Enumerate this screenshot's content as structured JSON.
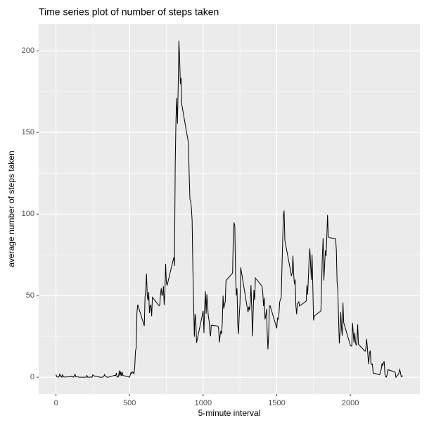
{
  "chart_data": {
    "type": "line",
    "title": "Time series plot of number of steps taken",
    "x_label": "5-minute interval",
    "y_label": "average number of steps taken",
    "x": [
      0,
      5,
      10,
      15,
      20,
      25,
      30,
      35,
      40,
      45,
      50,
      55,
      100,
      105,
      110,
      115,
      120,
      125,
      130,
      135,
      140,
      145,
      150,
      155,
      200,
      205,
      210,
      215,
      220,
      225,
      230,
      235,
      240,
      245,
      250,
      255,
      300,
      305,
      310,
      315,
      320,
      325,
      330,
      335,
      340,
      345,
      350,
      355,
      400,
      405,
      410,
      415,
      420,
      425,
      430,
      435,
      440,
      445,
      450,
      455,
      500,
      505,
      510,
      515,
      520,
      525,
      530,
      535,
      540,
      545,
      550,
      555,
      600,
      605,
      610,
      615,
      620,
      625,
      630,
      635,
      640,
      645,
      650,
      655,
      700,
      705,
      710,
      715,
      720,
      725,
      730,
      735,
      740,
      745,
      750,
      755,
      800,
      805,
      810,
      815,
      820,
      825,
      830,
      835,
      840,
      845,
      850,
      855,
      900,
      905,
      910,
      915,
      920,
      925,
      930,
      935,
      940,
      945,
      950,
      955,
      1000,
      1005,
      1010,
      1015,
      1020,
      1025,
      1030,
      1035,
      1040,
      1045,
      1050,
      1055,
      1100,
      1105,
      1110,
      1115,
      1120,
      1125,
      1130,
      1135,
      1140,
      1145,
      1150,
      1155,
      1200,
      1205,
      1210,
      1215,
      1220,
      1225,
      1230,
      1235,
      1240,
      1245,
      1250,
      1255,
      1300,
      1305,
      1310,
      1315,
      1320,
      1325,
      1330,
      1335,
      1340,
      1345,
      1350,
      1355,
      1400,
      1405,
      1410,
      1415,
      1420,
      1425,
      1430,
      1435,
      1440,
      1445,
      1450,
      1455,
      1500,
      1505,
      1510,
      1515,
      1520,
      1525,
      1530,
      1535,
      1540,
      1545,
      1550,
      1555,
      1600,
      1605,
      1610,
      1615,
      1620,
      1625,
      1630,
      1635,
      1640,
      1645,
      1650,
      1655,
      1700,
      1705,
      1710,
      1715,
      1720,
      1725,
      1730,
      1735,
      1740,
      1745,
      1750,
      1755,
      1800,
      1805,
      1810,
      1815,
      1820,
      1825,
      1830,
      1835,
      1840,
      1845,
      1850,
      1855,
      1900,
      1905,
      1910,
      1915,
      1920,
      1925,
      1930,
      1935,
      1940,
      1945,
      1950,
      1955,
      2000,
      2005,
      2010,
      2015,
      2020,
      2025,
      2030,
      2035,
      2040,
      2045,
      2050,
      2055,
      2100,
      2105,
      2110,
      2115,
      2120,
      2125,
      2130,
      2135,
      2140,
      2145,
      2150,
      2155,
      2200,
      2205,
      2210,
      2215,
      2220,
      2225,
      2230,
      2235,
      2240,
      2245,
      2250,
      2255,
      2300,
      2305,
      2310,
      2315,
      2320,
      2325,
      2330,
      2335,
      2340,
      2345,
      2350,
      2355
    ],
    "series": [
      {
        "color": "#000000",
        "values": [
          1.7,
          0.3,
          0.1,
          0.2,
          0.1,
          2.1,
          0.5,
          0.9,
          0,
          1.5,
          0.3,
          0.1,
          0.3,
          0.7,
          0.2,
          0.3,
          0,
          1.1,
          1.8,
          0.2,
          0.2,
          0.4,
          0.3,
          0,
          0,
          0,
          1.1,
          0,
          0,
          0.1,
          0,
          0.2,
          0,
          0,
          1.5,
          0.9,
          0,
          0,
          0,
          0,
          0.2,
          0.6,
          1.6,
          0.6,
          0.5,
          0.1,
          0,
          0,
          1.2,
          0.9,
          2.6,
          0,
          0.3,
          0.4,
          4.1,
          0.7,
          3.5,
          0.8,
          3.1,
          1.1,
          0,
          1.6,
          3,
          2.2,
          3.3,
          3,
          2.1,
          6.1,
          16,
          18.3,
          39.5,
          44.5,
          31.5,
          49.3,
          53.8,
          63.5,
          50,
          47.1,
          52.2,
          39.3,
          44,
          44.2,
          37.4,
          49,
          43.8,
          44.4,
          50.5,
          54.5,
          49.9,
          51,
          55.7,
          44.3,
          52.3,
          69.5,
          57.8,
          56.2,
          73.4,
          68.2,
          129.4,
          157.5,
          171.2,
          155.4,
          177.3,
          206.2,
          195.9,
          179.6,
          183.4,
          167,
          143.5,
          124,
          109.1,
          108.1,
          103.7,
          96,
          66.2,
          45.2,
          24.8,
          38.8,
          35,
          21.1,
          40.6,
          27,
          42.4,
          52.7,
          38.9,
          50.8,
          44.3,
          37.4,
          34.7,
          28.3,
          25.1,
          31.9,
          31.4,
          29.7,
          21.3,
          25.5,
          28.4,
          26.5,
          33.4,
          50,
          42,
          44.6,
          46,
          59.2,
          63.9,
          87.7,
          94.8,
          92.8,
          63.4,
          50.2,
          54.5,
          32.4,
          26.5,
          37.7,
          45.1,
          67.3,
          42.3,
          39.9,
          43.3,
          41,
          46.2,
          56.4,
          42.8,
          25.1,
          40,
          53.5,
          47.3,
          60.8,
          55.8,
          52,
          43.6,
          48.7,
          35.5,
          37.5,
          41.8,
          27.5,
          17.1,
          26.1,
          43.6,
          43.8,
          30,
          36.1,
          35.5,
          38.8,
          46,
          47.8,
          48.1,
          65.3,
          82.9,
          98.7,
          102.1,
          84,
          62.1,
          64.1,
          74.5,
          63.2,
          56.9,
          59.8,
          43.9,
          38.6,
          44.7,
          45.5,
          46.2,
          43.7,
          46.6,
          56.3,
          50.7,
          61.2,
          72.7,
          78.9,
          68.9,
          59.7,
          75.1,
          56.5,
          34.8,
          37.5,
          40.7,
          58,
          74.7,
          85.3,
          59.3,
          67.8,
          77.7,
          74.2,
          85.3,
          99.5,
          86.6,
          85.6,
          84.9,
          77.8,
          58,
          53.4,
          36.3,
          20.7,
          27.4,
          40,
          30.2,
          25.5,
          45.7,
          33.5,
          19.6,
          19,
          19.3,
          33.3,
          26.8,
          21.2,
          27.3,
          21.3,
          19.5,
          21.3,
          32.3,
          20.2,
          15.9,
          17.2,
          23.5,
          19.2,
          12.5,
          8,
          14.7,
          16.3,
          8.7,
          7.8,
          8.1,
          2.6,
          1.5,
          3.7,
          4.8,
          8.5,
          7.1,
          8.7,
          9.8,
          2.2,
          0.3,
          0.1,
          1.6,
          4.6,
          3.3,
          2.8,
          0,
          0.8,
          1,
          1.6,
          2.6,
          4.7,
          3.3,
          0.6,
          0.2,
          1.1
        ]
      }
    ],
    "xlim": [
      -117.75,
      2472.75
    ],
    "xticks": [
      0,
      500,
      1000,
      1500,
      2000
    ],
    "ylim": [
      -10.3,
      216.5
    ],
    "yticks": [
      0,
      50,
      100,
      150,
      200
    ],
    "grid": true
  }
}
